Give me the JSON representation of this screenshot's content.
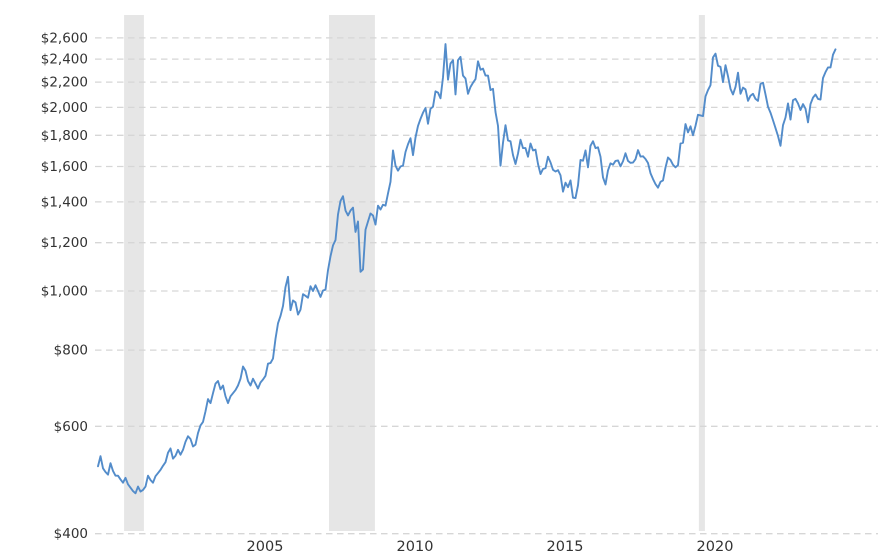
{
  "chart_data": {
    "type": "line",
    "scale_y": "log",
    "grid": "horizontal-dashed",
    "legend": "none",
    "y_axis": {
      "tick_values": [
        400,
        600,
        800,
        1000,
        1200,
        1400,
        1600,
        1800,
        2000,
        2200,
        2400,
        2600
      ],
      "tick_labels": [
        "$400",
        "$600",
        "$800",
        "$1,000",
        "$1,200",
        "$1,400",
        "$1,600",
        "$1,800",
        "$2,000",
        "$2,200",
        "$2,400",
        "$2,600"
      ],
      "range": [
        400,
        2600
      ]
    },
    "x_axis": {
      "tick_values": [
        2005,
        2010,
        2015,
        2020
      ],
      "tick_labels": [
        "2005",
        "2010",
        "2015",
        "2020"
      ],
      "range_years": [
        2000.0,
        2024.67
      ]
    },
    "recession_bands": [
      {
        "start_year": 2000.87,
        "end_year": 2001.53
      },
      {
        "start_year": 2007.7,
        "end_year": 2009.23
      },
      {
        "start_year": 2020.03,
        "end_year": 2020.23
      }
    ],
    "series": {
      "frequency": "monthly",
      "start": "2000-01",
      "end": "2024-08",
      "values": [
        516,
        536,
        512,
        505,
        500,
        522,
        507,
        498,
        498,
        491,
        485,
        494,
        482,
        476,
        470,
        466,
        478,
        469,
        472,
        478,
        498,
        490,
        485,
        497,
        503,
        509,
        517,
        524,
        543,
        552,
        531,
        537,
        549,
        539,
        549,
        566,
        578,
        572,
        556,
        560,
        585,
        602,
        610,
        635,
        665,
        655,
        680,
        705,
        712,
        690,
        700,
        672,
        655,
        672,
        680,
        688,
        700,
        718,
        752,
        740,
        712,
        700,
        718,
        705,
        692,
        708,
        716,
        726,
        760,
        762,
        775,
        835,
        885,
        910,
        945,
        1015,
        1055,
        930,
        965,
        958,
        915,
        932,
        988,
        982,
        975,
        1018,
        1000,
        1022,
        1000,
        978,
        1002,
        1005,
        1082,
        1140,
        1188,
        1212,
        1335,
        1405,
        1430,
        1355,
        1330,
        1355,
        1370,
        1250,
        1300,
        1075,
        1085,
        1260,
        1300,
        1340,
        1330,
        1285,
        1380,
        1360,
        1385,
        1380,
        1445,
        1510,
        1700,
        1605,
        1575,
        1600,
        1605,
        1690,
        1740,
        1780,
        1670,
        1785,
        1865,
        1915,
        1960,
        1995,
        1880,
        1990,
        2005,
        2125,
        2115,
        2070,
        2240,
        2540,
        2220,
        2360,
        2390,
        2100,
        2390,
        2420,
        2255,
        2230,
        2105,
        2160,
        2195,
        2225,
        2380,
        2305,
        2315,
        2255,
        2255,
        2135,
        2145,
        1965,
        1865,
        1605,
        1750,
        1870,
        1765,
        1760,
        1670,
        1615,
        1680,
        1770,
        1715,
        1715,
        1660,
        1745,
        1700,
        1705,
        1615,
        1555,
        1585,
        1590,
        1660,
        1625,
        1580,
        1570,
        1578,
        1548,
        1455,
        1505,
        1480,
        1518,
        1422,
        1420,
        1490,
        1640,
        1635,
        1700,
        1595,
        1730,
        1760,
        1715,
        1720,
        1660,
        1535,
        1495,
        1577,
        1619,
        1611,
        1634,
        1637,
        1601,
        1632,
        1682,
        1634,
        1622,
        1624,
        1645,
        1702,
        1661,
        1663,
        1646,
        1621,
        1560,
        1526,
        1497,
        1477,
        1510,
        1518,
        1594,
        1655,
        1640,
        1610,
        1595,
        1608,
        1745,
        1750,
        1878,
        1820,
        1862,
        1800,
        1865,
        1945,
        1940,
        1935,
        2085,
        2135,
        2175,
        2415,
        2450,
        2340,
        2330,
        2200,
        2345,
        2250,
        2145,
        2100,
        2160,
        2280,
        2105,
        2155,
        2140,
        2050,
        2090,
        2105,
        2065,
        2050,
        2185,
        2195,
        2100,
        2005,
        1960,
        1905,
        1850,
        1795,
        1730,
        1870,
        1925,
        2030,
        1910,
        2055,
        2065,
        2030,
        1980,
        2025,
        1990,
        1890,
        2025,
        2075,
        2100,
        2065,
        2060,
        2235,
        2285,
        2325,
        2325,
        2440,
        2490
      ]
    },
    "colors": {
      "line": "#538cca",
      "recession_band": "#e6e6e6",
      "gridline": "#d6d6d6",
      "tick_text": "#333333",
      "background": "#ffffff"
    }
  }
}
